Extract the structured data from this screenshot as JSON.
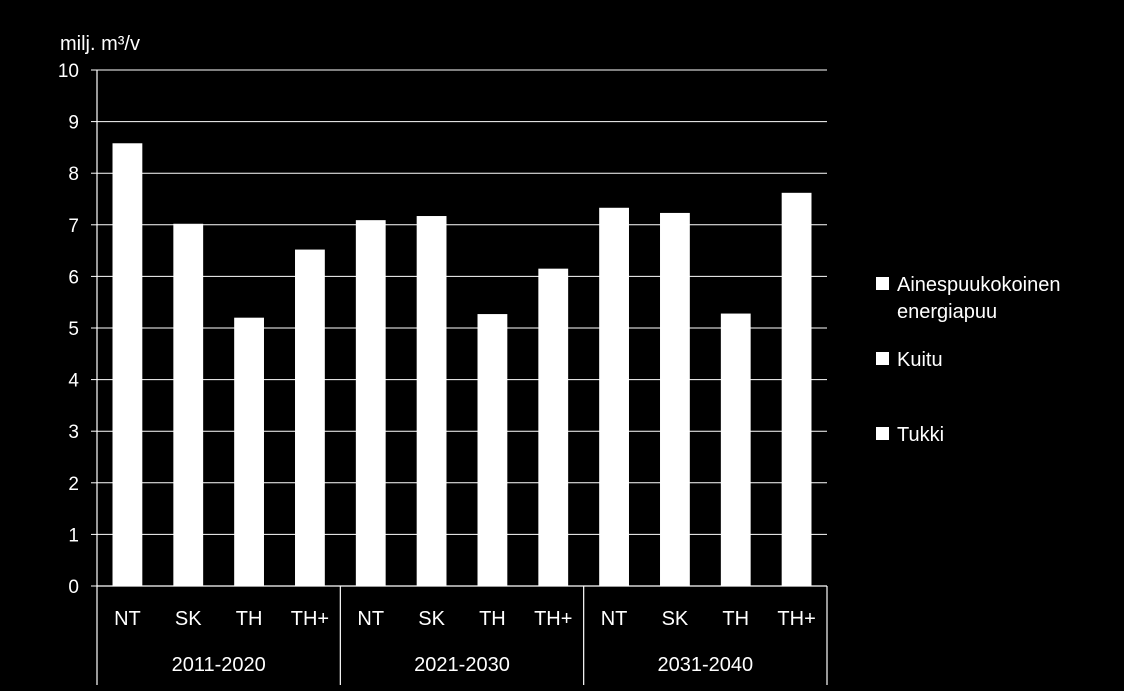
{
  "chart_data": {
    "type": "bar",
    "ylabel": "milj. m³/v",
    "ylim": [
      0,
      10
    ],
    "yticks": [
      0,
      1,
      2,
      3,
      4,
      5,
      6,
      7,
      8,
      9,
      10
    ],
    "groups": [
      {
        "label": "2011-2020",
        "categories": [
          "NT",
          "SK",
          "TH",
          "TH+"
        ],
        "values": [
          8.58,
          7.02,
          5.2,
          6.52
        ]
      },
      {
        "label": "2021-2030",
        "categories": [
          "NT",
          "SK",
          "TH",
          "TH+"
        ],
        "values": [
          7.09,
          7.17,
          5.27,
          6.15
        ]
      },
      {
        "label": "2031-2040",
        "categories": [
          "NT",
          "SK",
          "TH",
          "TH+"
        ],
        "values": [
          7.33,
          7.23,
          5.28,
          7.62
        ]
      }
    ],
    "legend": [
      {
        "name": "Ainespuukokoinen energiapuu"
      },
      {
        "name": "Kuitu"
      },
      {
        "name": "Tukki"
      }
    ],
    "legend_position": "right",
    "grid": true,
    "colors": {
      "background": "#000000",
      "bar": "#ffffff",
      "text": "#ffffff",
      "grid": "#ffffff"
    }
  }
}
